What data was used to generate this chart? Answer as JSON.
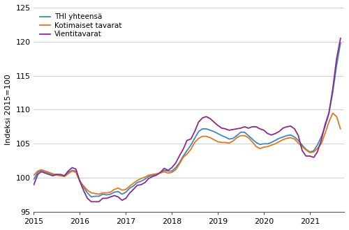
{
  "title": "",
  "ylabel": "Indeksi 2015=100",
  "ylim": [
    95,
    125
  ],
  "yticks": [
    95,
    100,
    105,
    110,
    115,
    120,
    125
  ],
  "legend_labels": [
    "THI yhteensä",
    "Kotimaiset tavarat",
    "Vientitavarat"
  ],
  "colors": [
    "#3d87c0",
    "#e07820",
    "#8b2a8b"
  ],
  "linewidth": 1.3,
  "thi_yhteensa": [
    99.8,
    100.8,
    101.1,
    100.9,
    100.7,
    100.5,
    100.5,
    100.4,
    100.3,
    100.8,
    101.1,
    101.0,
    99.6,
    98.6,
    97.8,
    97.2,
    97.3,
    97.3,
    97.6,
    97.5,
    97.6,
    97.9,
    98.0,
    97.6,
    97.9,
    98.5,
    98.8,
    99.3,
    99.5,
    99.8,
    100.2,
    100.4,
    100.5,
    100.8,
    101.1,
    101.0,
    101.0,
    101.5,
    102.2,
    103.2,
    104.0,
    104.8,
    105.8,
    106.8,
    107.2,
    107.2,
    107.0,
    106.8,
    106.5,
    106.2,
    106.0,
    105.7,
    105.8,
    106.2,
    106.7,
    106.7,
    106.2,
    105.7,
    105.2,
    104.9,
    105.0,
    105.0,
    105.2,
    105.5,
    105.8,
    106.0,
    106.2,
    106.3,
    106.0,
    105.5,
    104.8,
    104.2,
    103.8,
    104.0,
    104.8,
    106.0,
    107.5,
    109.5,
    112.5,
    116.5,
    119.8
  ],
  "kotimaiset": [
    100.4,
    101.0,
    101.2,
    101.0,
    100.8,
    100.6,
    100.4,
    100.3,
    100.2,
    100.6,
    101.0,
    100.8,
    99.5,
    98.8,
    98.2,
    97.8,
    97.7,
    97.6,
    97.8,
    97.8,
    97.9,
    98.3,
    98.5,
    98.2,
    98.3,
    98.8,
    99.2,
    99.6,
    99.9,
    100.1,
    100.4,
    100.5,
    100.6,
    100.7,
    100.9,
    100.7,
    100.8,
    101.2,
    102.0,
    103.0,
    103.5,
    104.2,
    105.2,
    105.8,
    106.1,
    106.1,
    105.9,
    105.6,
    105.3,
    105.2,
    105.2,
    105.1,
    105.4,
    105.9,
    106.2,
    106.2,
    105.9,
    105.3,
    104.6,
    104.3,
    104.5,
    104.6,
    104.8,
    105.0,
    105.3,
    105.6,
    105.8,
    105.9,
    105.7,
    105.1,
    104.6,
    104.1,
    103.7,
    103.8,
    104.3,
    105.0,
    106.5,
    108.2,
    109.5,
    109.0,
    107.2
  ],
  "vientitavarat": [
    99.0,
    100.5,
    100.9,
    100.7,
    100.5,
    100.3,
    100.5,
    100.5,
    100.3,
    101.0,
    101.5,
    101.3,
    99.5,
    98.1,
    97.0,
    96.5,
    96.5,
    96.5,
    97.0,
    97.0,
    97.2,
    97.4,
    97.2,
    96.7,
    97.0,
    97.8,
    98.3,
    98.9,
    99.0,
    99.3,
    99.9,
    100.2,
    100.4,
    100.8,
    101.4,
    101.1,
    101.5,
    102.2,
    103.2,
    104.2,
    105.5,
    105.7,
    106.8,
    108.2,
    108.8,
    109.0,
    108.7,
    108.2,
    107.7,
    107.3,
    107.2,
    107.0,
    107.1,
    107.2,
    107.3,
    107.5,
    107.3,
    107.5,
    107.5,
    107.2,
    107.0,
    106.5,
    106.3,
    106.5,
    106.8,
    107.3,
    107.5,
    107.6,
    107.2,
    106.2,
    104.0,
    103.2,
    103.2,
    103.0,
    103.8,
    105.5,
    107.8,
    109.5,
    113.0,
    117.5,
    120.5
  ]
}
